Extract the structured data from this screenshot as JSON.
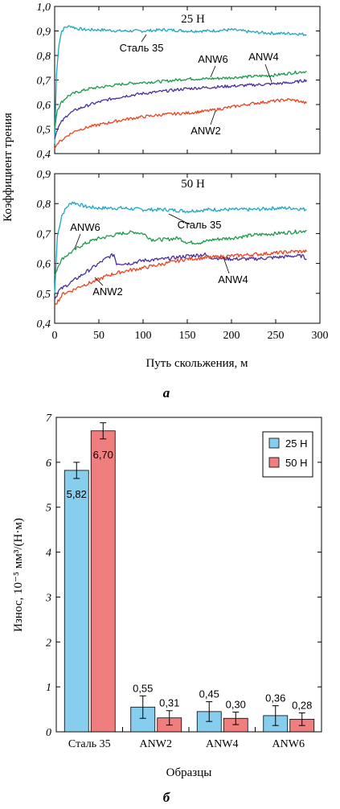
{
  "chart_data": [
    {
      "type": "line",
      "title": "25 Н",
      "xlabel": "Путь скольжения, м",
      "ylabel": "Коэффициент трения",
      "xlim": [
        0,
        300
      ],
      "ylim": [
        0.4,
        1.0
      ],
      "xticks": [
        "0",
        "50",
        "100",
        "150",
        "200",
        "250",
        "300"
      ],
      "yticks": [
        "0,4",
        "0,5",
        "0,6",
        "0,7",
        "0,8",
        "0,9",
        "1,0"
      ],
      "series": [
        {
          "name": "Сталь 35",
          "color": "#1aa7c4",
          "x": [
            0,
            2,
            5,
            8,
            12,
            18,
            25,
            35,
            50,
            75,
            100,
            125,
            150,
            175,
            200,
            225,
            250,
            270,
            285
          ],
          "y": [
            0.44,
            0.72,
            0.85,
            0.9,
            0.915,
            0.92,
            0.91,
            0.905,
            0.905,
            0.9,
            0.9,
            0.905,
            0.9,
            0.9,
            0.905,
            0.895,
            0.89,
            0.89,
            0.885
          ]
        },
        {
          "name": "ANW6",
          "color": "#1b9a4b",
          "x": [
            0,
            3,
            8,
            15,
            25,
            40,
            60,
            80,
            100,
            125,
            150,
            175,
            200,
            225,
            250,
            270,
            285
          ],
          "y": [
            0.5,
            0.58,
            0.61,
            0.635,
            0.65,
            0.665,
            0.675,
            0.685,
            0.69,
            0.695,
            0.705,
            0.705,
            0.71,
            0.715,
            0.72,
            0.73,
            0.735
          ]
        },
        {
          "name": "ANW4",
          "color": "#4b2d9c",
          "x": [
            0,
            3,
            8,
            15,
            25,
            40,
            60,
            80,
            100,
            125,
            150,
            175,
            200,
            225,
            250,
            270,
            285
          ],
          "y": [
            0.46,
            0.5,
            0.53,
            0.56,
            0.58,
            0.6,
            0.62,
            0.635,
            0.645,
            0.655,
            0.665,
            0.67,
            0.675,
            0.68,
            0.685,
            0.69,
            0.7
          ]
        },
        {
          "name": "ANW2",
          "color": "#e8441f",
          "x": [
            0,
            3,
            8,
            15,
            25,
            40,
            60,
            80,
            100,
            125,
            150,
            175,
            200,
            225,
            250,
            265,
            275,
            285
          ],
          "y": [
            0.42,
            0.44,
            0.455,
            0.475,
            0.495,
            0.51,
            0.525,
            0.54,
            0.55,
            0.56,
            0.565,
            0.575,
            0.59,
            0.605,
            0.615,
            0.62,
            0.615,
            0.605
          ]
        }
      ]
    },
    {
      "type": "line",
      "title": "50 Н",
      "xlabel": "Путь скольжения, м",
      "ylabel": "Коэффициент трения",
      "xlim": [
        0,
        300
      ],
      "ylim": [
        0.4,
        0.9
      ],
      "xticks": [
        "0",
        "50",
        "100",
        "150",
        "200",
        "250",
        "300"
      ],
      "yticks": [
        "0,4",
        "0,5",
        "0,6",
        "0,7",
        "0,8",
        "0,9"
      ],
      "series": [
        {
          "name": "Сталь 35",
          "color": "#1aa7c4",
          "x": [
            0,
            3,
            8,
            14,
            20,
            25,
            35,
            50,
            75,
            100,
            125,
            150,
            175,
            200,
            225,
            250,
            270,
            285
          ],
          "y": [
            0.5,
            0.69,
            0.76,
            0.79,
            0.805,
            0.8,
            0.79,
            0.785,
            0.785,
            0.78,
            0.78,
            0.775,
            0.78,
            0.78,
            0.78,
            0.785,
            0.785,
            0.78
          ]
        },
        {
          "name": "ANW6",
          "color": "#1b9a4b",
          "x": [
            0,
            5,
            10,
            20,
            30,
            45,
            60,
            75,
            90,
            100,
            110,
            125,
            140,
            150,
            165,
            180,
            200,
            225,
            250,
            270,
            285
          ],
          "y": [
            0.56,
            0.6,
            0.62,
            0.64,
            0.66,
            0.68,
            0.69,
            0.7,
            0.705,
            0.7,
            0.68,
            0.68,
            0.685,
            0.67,
            0.67,
            0.68,
            0.685,
            0.695,
            0.7,
            0.705,
            0.71
          ]
        },
        {
          "name": "ANW4",
          "color": "#4b2d9c",
          "x": [
            0,
            5,
            10,
            20,
            30,
            40,
            50,
            60,
            67,
            70,
            75,
            85,
            100,
            125,
            150,
            170,
            175,
            200,
            225,
            250,
            270,
            280,
            285
          ],
          "y": [
            0.48,
            0.51,
            0.52,
            0.54,
            0.56,
            0.58,
            0.6,
            0.62,
            0.63,
            0.6,
            0.6,
            0.6,
            0.61,
            0.615,
            0.625,
            0.63,
            0.62,
            0.615,
            0.615,
            0.62,
            0.625,
            0.625,
            0.615
          ]
        },
        {
          "name": "ANW2",
          "color": "#e8441f",
          "x": [
            0,
            5,
            10,
            20,
            30,
            45,
            60,
            80,
            100,
            125,
            150,
            175,
            200,
            225,
            250,
            270,
            285
          ],
          "y": [
            0.46,
            0.48,
            0.5,
            0.51,
            0.525,
            0.54,
            0.56,
            0.575,
            0.585,
            0.6,
            0.615,
            0.62,
            0.625,
            0.63,
            0.635,
            0.64,
            0.64
          ]
        }
      ]
    },
    {
      "type": "bar",
      "categories": [
        "Сталь 35",
        "ANW2",
        "ANW4",
        "ANW6"
      ],
      "xlabel": "Образцы",
      "ylabel": "Износ, 10⁻⁵ мм³/(Н·м)",
      "ylim": [
        0,
        7
      ],
      "yticks": [
        "0",
        "1",
        "2",
        "3",
        "4",
        "5",
        "6",
        "7"
      ],
      "legend_position": "top-right",
      "series": [
        {
          "name": "25 Н",
          "color": "#87cdee",
          "values": [
            5.82,
            0.55,
            0.45,
            0.36
          ],
          "errors": [
            0.18,
            0.25,
            0.22,
            0.22
          ],
          "labels": [
            "5,82",
            "0,55",
            "0,45",
            "0,36"
          ]
        },
        {
          "name": "50 Н",
          "color": "#ef7f7f",
          "values": [
            6.7,
            0.31,
            0.3,
            0.28
          ],
          "errors": [
            0.18,
            0.16,
            0.14,
            0.14
          ],
          "labels": [
            "6,70",
            "0,31",
            "0,30",
            "0,28"
          ]
        }
      ]
    }
  ],
  "panels": {
    "a": "а",
    "b": "б"
  }
}
